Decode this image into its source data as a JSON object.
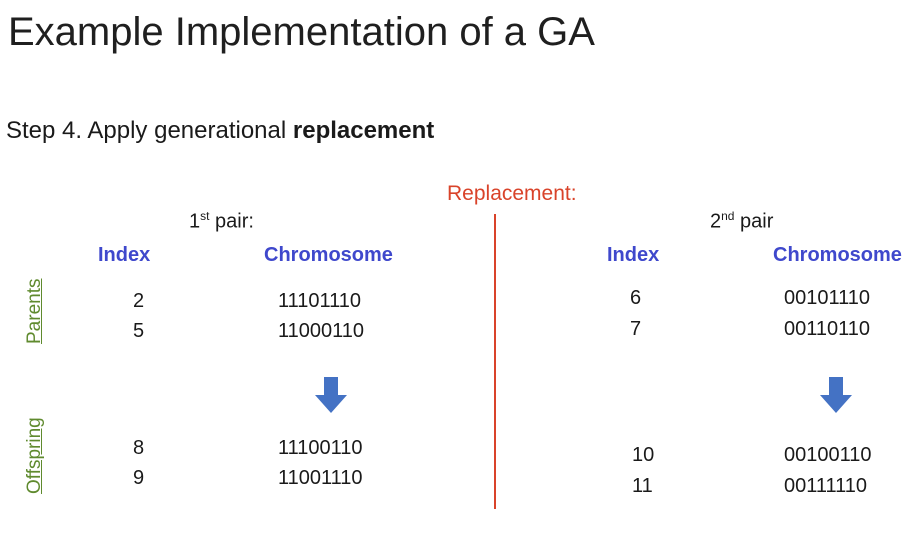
{
  "title": "Example Implementation of a GA",
  "step": {
    "prefix": "Step 4. Apply generational ",
    "emphasis": "replacement"
  },
  "replacement_label": "Replacement:",
  "side_labels": {
    "parents": "Parents",
    "offspring": "Offspring"
  },
  "pair1": {
    "label_num": "1",
    "label_sup": "st",
    "label_rest": " pair:",
    "index_header": "Index",
    "chromosome_header": "Chromosome",
    "parents": [
      {
        "index": "2",
        "chromosome": "11101110"
      },
      {
        "index": "5",
        "chromosome": "11000110"
      }
    ],
    "offspring": [
      {
        "index": "8",
        "chromosome": "11100110"
      },
      {
        "index": "9",
        "chromosome": "11001110"
      }
    ]
  },
  "pair2": {
    "label_num": "2",
    "label_sup": "nd",
    "label_rest": " pair",
    "index_header": "Index",
    "chromosome_header": "Chromosome",
    "parents": [
      {
        "index": "6",
        "chromosome": "00101110"
      },
      {
        "index": "7",
        "chromosome": "00110110"
      }
    ],
    "offspring": [
      {
        "index": "10",
        "chromosome": "00100110"
      },
      {
        "index": "11",
        "chromosome": "00111110"
      }
    ]
  },
  "colors": {
    "header_blue": "#3f48cc",
    "replacement_red": "#d9432a",
    "side_green": "#5f8a2e",
    "arrow_blue": "#4472c4"
  }
}
